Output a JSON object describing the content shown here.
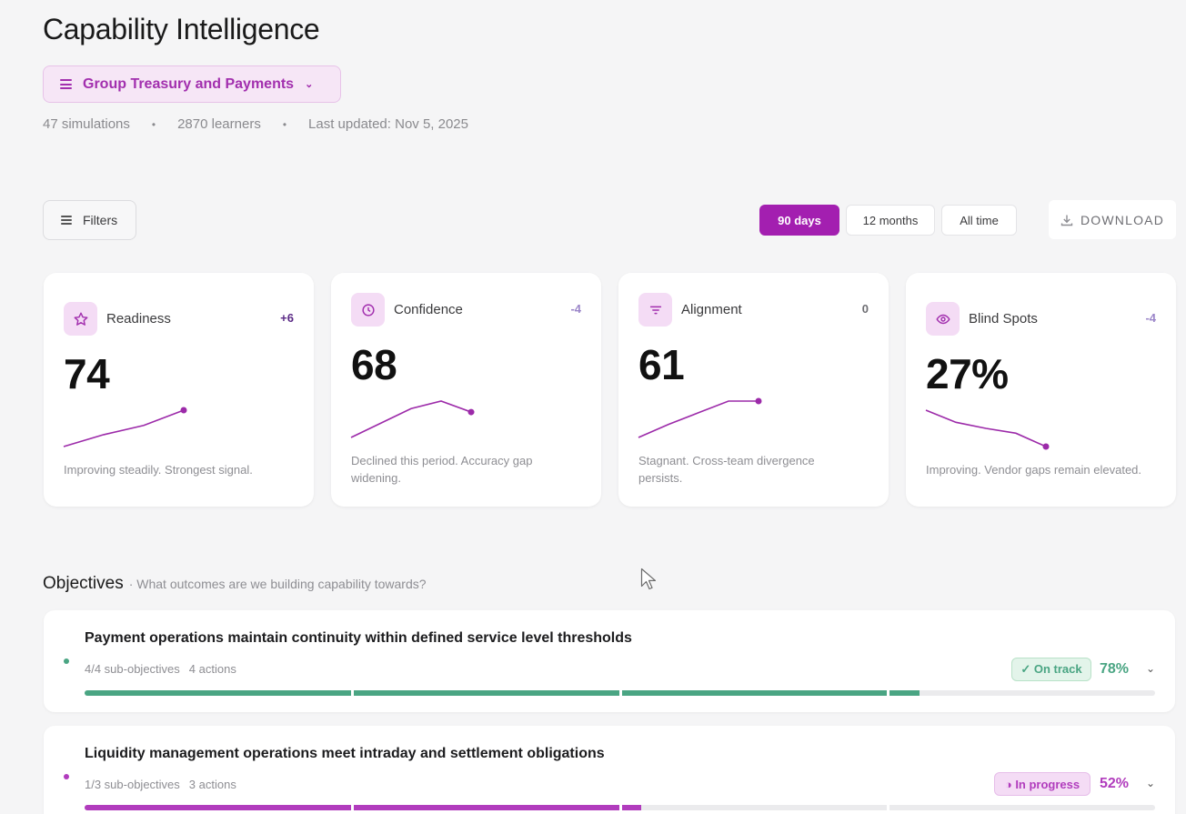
{
  "header": {
    "title": "Capability Intelligence",
    "group_select": "Group Treasury and Payments",
    "meta": {
      "simulations": "47 simulations",
      "learners": "2870 learners",
      "updated": "Last updated: Nov 5, 2025"
    }
  },
  "toolbar": {
    "filters_label": "Filters",
    "ranges": [
      "90 days",
      "12 months",
      "All time"
    ],
    "active_range": "90 days",
    "download_label": "DOWNLOAD"
  },
  "metrics": [
    {
      "label": "Readiness",
      "value": "74",
      "delta": "+6",
      "delta_color": "#5b2a86",
      "icon": "star-icon",
      "trend": [
        0,
        18,
        32,
        55
      ],
      "description": "Improving steadily. Strongest signal."
    },
    {
      "label": "Confidence",
      "value": "68",
      "delta": "-4",
      "delta_color": "#9b86c9",
      "icon": "clock-icon",
      "trend": [
        0,
        25,
        50,
        63,
        44
      ],
      "description": "Declined this period. Accuracy gap widening."
    },
    {
      "label": "Alignment",
      "value": "61",
      "delta": "0",
      "delta_color": "#6e6e73",
      "icon": "filter-icon",
      "trend": [
        0,
        18,
        34,
        50,
        50
      ],
      "description": "Stagnant. Cross-team divergence persists."
    },
    {
      "label": "Blind Spots",
      "value": "27%",
      "delta": "-4",
      "delta_color": "#9b86c9",
      "icon": "eye-icon",
      "trend": [
        60,
        40,
        30,
        22,
        0
      ],
      "description": "Improving. Vendor gaps remain elevated."
    }
  ],
  "objectives": {
    "title": "Objectives",
    "subtitle": "· What outcomes are we building capability towards?",
    "items": [
      {
        "title": "Payment operations maintain continuity within defined service level thresholds",
        "sub_objectives": "4/4 sub-objectives",
        "actions": "4 actions",
        "status": "✓ On track",
        "percent": "78%",
        "progress": 0.78,
        "color": "#4aa583",
        "badge_bg": "#e3f4ea",
        "badge_border": "#b9e2c8"
      },
      {
        "title": "Liquidity management operations meet intraday and settlement obligations",
        "sub_objectives": "1/3 sub-objectives",
        "actions": "3 actions",
        "status": "◑ In progress",
        "percent": "52%",
        "progress": 0.52,
        "color": "#b13cbd",
        "badge_bg": "#f4dcf5",
        "badge_border": "#e6bde9"
      }
    ]
  }
}
